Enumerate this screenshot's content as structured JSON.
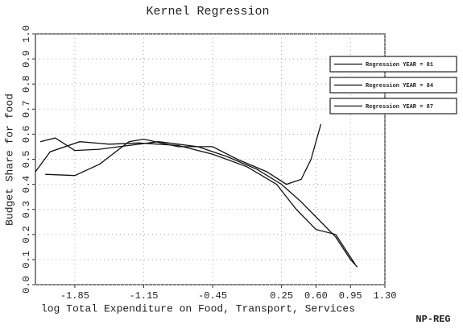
{
  "chart_data": {
    "type": "line",
    "title": "Kernel Regression",
    "x_label": "log Total Expenditure on Food, Transport, Services",
    "y_label": "Budget Share for food",
    "annotation": "NP-REG",
    "xlim": [
      -2.25,
      1.3
    ],
    "ylim": [
      0,
      1
    ],
    "xticks": [
      -1.85,
      -1.15,
      -0.45,
      0.25,
      {
        "value": 0.6,
        "label": "0.60"
      },
      0.95,
      {
        "value": 1.3,
        "label": "1.30"
      }
    ],
    "yticks": [
      {
        "value": 0,
        "label": "0.0"
      },
      0.1,
      0.2,
      0.3,
      0.4,
      0.5,
      0.6,
      0.7,
      0.8,
      0.9,
      {
        "value": 1,
        "label": "1.0"
      }
    ],
    "grid": true,
    "legend": "upper right",
    "series": [
      {
        "name": "Regression YEAR = 81",
        "color": "#111",
        "x": [
          -2.15,
          -1.85,
          -1.6,
          -1.3,
          -1.15,
          -0.8,
          -0.45,
          -0.2,
          0.1,
          0.3,
          0.45,
          0.55,
          0.65
        ],
        "values": [
          0.44,
          0.435,
          0.48,
          0.57,
          0.58,
          0.55,
          0.55,
          0.5,
          0.45,
          0.4,
          0.42,
          0.5,
          0.64
        ]
      },
      {
        "name": "Regression YEAR = 84",
        "color": "#111",
        "x": [
          -2.25,
          -2.1,
          -1.8,
          -1.5,
          -1.2,
          -0.8,
          -0.45,
          -0.1,
          0.2,
          0.4,
          0.6,
          0.8,
          0.9,
          1.0
        ],
        "values": [
          0.45,
          0.53,
          0.57,
          0.56,
          0.565,
          0.555,
          0.52,
          0.47,
          0.4,
          0.3,
          0.22,
          0.2,
          0.14,
          0.08
        ]
      },
      {
        "name": "Regression YEAR = 87",
        "color": "#111",
        "x": [
          -2.2,
          -2.05,
          -1.85,
          -1.6,
          -1.3,
          -1.0,
          -0.6,
          -0.3,
          0.0,
          0.25,
          0.45,
          0.6,
          0.8,
          0.95,
          1.02
        ],
        "values": [
          0.57,
          0.585,
          0.535,
          0.54,
          0.555,
          0.57,
          0.55,
          0.51,
          0.46,
          0.4,
          0.33,
          0.27,
          0.19,
          0.1,
          0.07
        ]
      }
    ]
  }
}
